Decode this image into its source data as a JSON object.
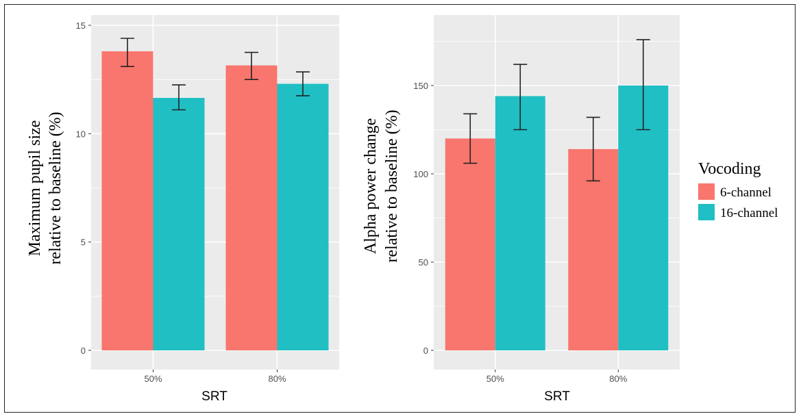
{
  "chart_data": [
    {
      "type": "bar",
      "categories": [
        "50%",
        "80%"
      ],
      "xlabel": "SRT",
      "ylabel_lines": [
        "Maximum pupil size",
        "relative to baseline (%)"
      ],
      "ylim": [
        0,
        15
      ],
      "yticks": [
        0,
        5,
        10,
        15
      ],
      "grid": true,
      "series": [
        {
          "name": "6-channel",
          "values": [
            13.8,
            13.15
          ],
          "err_low": [
            13.1,
            12.5
          ],
          "err_high": [
            14.4,
            13.75
          ]
        },
        {
          "name": "16-channel",
          "values": [
            11.65,
            12.3
          ],
          "err_low": [
            11.1,
            11.75
          ],
          "err_high": [
            12.25,
            12.85
          ]
        }
      ]
    },
    {
      "type": "bar",
      "categories": [
        "50%",
        "80%"
      ],
      "xlabel": "SRT",
      "ylabel_lines": [
        "Alpha power change",
        "relative to baseline (%)"
      ],
      "ylim": [
        0,
        180
      ],
      "yticks": [
        0,
        50,
        100,
        150
      ],
      "grid": true,
      "series": [
        {
          "name": "6-channel",
          "values": [
            120,
            114
          ],
          "err_low": [
            106,
            96
          ],
          "err_high": [
            134,
            132
          ]
        },
        {
          "name": "16-channel",
          "values": [
            144,
            150
          ],
          "err_low": [
            125,
            125
          ],
          "err_high": [
            162,
            176
          ]
        }
      ]
    }
  ],
  "legend": {
    "title": "Vocoding",
    "placement": "right",
    "items": [
      {
        "label": "6-channel",
        "color": "#f8766d"
      },
      {
        "label": "16-channel",
        "color": "#1fbfc4"
      }
    ]
  },
  "colors": {
    "panel_bg": "#ebebeb",
    "grid": "#ffffff",
    "errorbar": "#222222"
  }
}
